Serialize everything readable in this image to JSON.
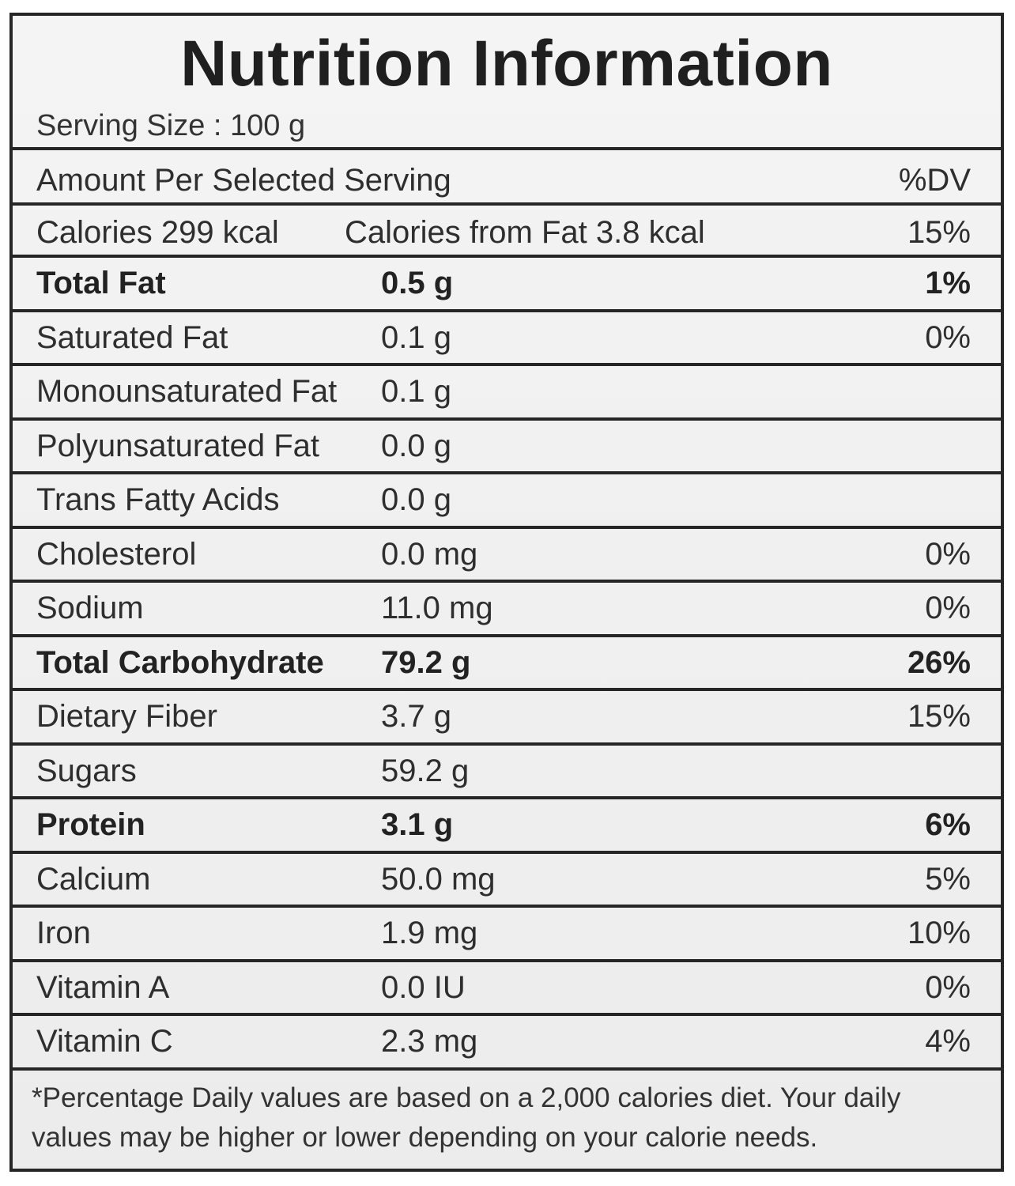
{
  "title": "Nutrition Information",
  "serving_size": "Serving Size : 100 g",
  "header": {
    "label": "Amount Per Selected Serving",
    "dv": "%DV"
  },
  "calories": {
    "label": "Calories 299 kcal",
    "from_fat": "Calories from Fat 3.8 kcal",
    "dv": "15%"
  },
  "nutrients": [
    {
      "name": "Total Fat",
      "amount": "0.5 g",
      "dv": "1%",
      "bold": true
    },
    {
      "name": "Saturated Fat",
      "amount": "0.1 g",
      "dv": "0%",
      "bold": false
    },
    {
      "name": "Monounsaturated Fat",
      "amount": "0.1 g",
      "dv": "",
      "bold": false
    },
    {
      "name": "Polyunsaturated Fat",
      "amount": "0.0 g",
      "dv": "",
      "bold": false
    },
    {
      "name": "Trans Fatty Acids",
      "amount": "0.0 g",
      "dv": "",
      "bold": false
    },
    {
      "name": "Cholesterol",
      "amount": "0.0 mg",
      "dv": "0%",
      "bold": false
    },
    {
      "name": "Sodium",
      "amount": "11.0 mg",
      "dv": "0%",
      "bold": false
    },
    {
      "name": "Total Carbohydrate",
      "amount": "79.2 g",
      "dv": "26%",
      "bold": true
    },
    {
      "name": "Dietary Fiber",
      "amount": "3.7 g",
      "dv": "15%",
      "bold": false
    },
    {
      "name": "Sugars",
      "amount": "59.2 g",
      "dv": "",
      "bold": false
    },
    {
      "name": "Protein",
      "amount": "3.1 g",
      "dv": "6%",
      "bold": true
    },
    {
      "name": "Calcium",
      "amount": "50.0 mg",
      "dv": "5%",
      "bold": false
    },
    {
      "name": "Iron",
      "amount": "1.9 mg",
      "dv": "10%",
      "bold": false
    },
    {
      "name": "Vitamin A",
      "amount": "0.0 IU",
      "dv": "0%",
      "bold": false
    },
    {
      "name": "Vitamin C",
      "amount": "2.3 mg",
      "dv": "4%",
      "bold": false
    }
  ],
  "footnote": "*Percentage Daily values are based on a 2,000 calories diet. Your daily values may be higher or lower depending on your calorie needs."
}
